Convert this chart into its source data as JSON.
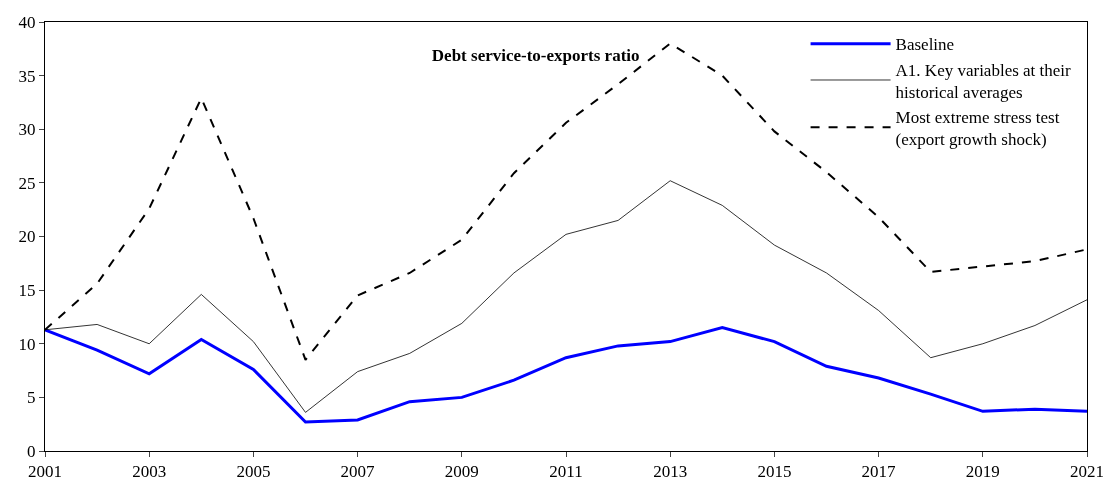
{
  "chart_data": {
    "type": "line",
    "title": "Debt service-to-exports ratio",
    "x": [
      2001,
      2002,
      2003,
      2004,
      2005,
      2006,
      2007,
      2008,
      2009,
      2010,
      2011,
      2012,
      2013,
      2014,
      2015,
      2016,
      2017,
      2018,
      2019,
      2020,
      2021
    ],
    "series": [
      {
        "name": "Baseline",
        "color": "#0000ff",
        "line_style": "solid",
        "values": [
          11.3,
          9.4,
          7.2,
          10.4,
          7.6,
          2.7,
          2.9,
          4.6,
          5.0,
          6.6,
          8.7,
          9.8,
          10.2,
          11.5,
          10.2,
          7.9,
          6.8,
          5.3,
          3.7,
          3.9,
          3.7
        ]
      },
      {
        "name": "A1. Key variables at their\nhistorical averages",
        "color": "#000000",
        "line_style": "solid",
        "values": [
          11.3,
          11.8,
          10.0,
          14.6,
          10.2,
          3.6,
          7.4,
          9.1,
          11.9,
          16.6,
          20.2,
          21.5,
          25.2,
          22.9,
          19.2,
          16.6,
          13.1,
          8.7,
          10.0,
          11.7,
          14.1
        ]
      },
      {
        "name": "Most extreme stress test\n(export growth shock)",
        "color": "#000000",
        "line_style": "dashed",
        "values": [
          11.3,
          15.6,
          22.6,
          32.9,
          21.7,
          8.5,
          14.5,
          16.6,
          19.7,
          25.9,
          30.6,
          34.2,
          38.0,
          35.0,
          29.8,
          26.0,
          21.8,
          16.7,
          17.2,
          17.7,
          18.8
        ]
      }
    ],
    "xlim": [
      2001,
      2021
    ],
    "xticks": [
      2001,
      2003,
      2005,
      2007,
      2009,
      2011,
      2013,
      2015,
      2017,
      2019,
      2021
    ],
    "ylim": [
      0,
      40
    ],
    "yticks": [
      0,
      5,
      10,
      15,
      20,
      25,
      30,
      35,
      40
    ],
    "legend": "top right",
    "marker": "none"
  }
}
